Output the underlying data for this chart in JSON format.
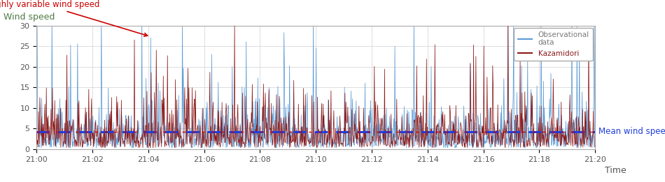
{
  "ylabel_text": "Wind speed",
  "xlabel": "Time",
  "mean_wind_speed": 4.3,
  "mean_label": "Mean wind speed",
  "obs_label": "Observational\ndata",
  "kazamidori_label": "Kazamidori",
  "annotation_text": "Highly variable wind speed",
  "ylim": [
    0,
    30
  ],
  "yticks": [
    0,
    5,
    10,
    15,
    20,
    25,
    30
  ],
  "xtick_labels": [
    "21:00",
    "21:02",
    "21:04",
    "21:06",
    "21:08",
    "21:10",
    "21:12",
    "21:14",
    "21:16",
    "21:18",
    "21:20"
  ],
  "obs_color": "#5b9bd5",
  "kazamidori_color": "#8b1a1a",
  "mean_color_blue": "#1f3ddb",
  "mean_color_red": "#cc0000",
  "background_color": "#ffffff",
  "grid_color": "#d0d0d0",
  "n_points": 1200,
  "seed": 42,
  "mean_val": 4.3,
  "early_spike_obs": 27,
  "early_spike_kaz": 24,
  "early_spike_idx": 245,
  "ylabel_color": "#4f7942",
  "annotation_color": "#cc0000",
  "mean_label_color": "#1f3ddb",
  "xlabel_color": "#555555",
  "tick_color": "#555555"
}
